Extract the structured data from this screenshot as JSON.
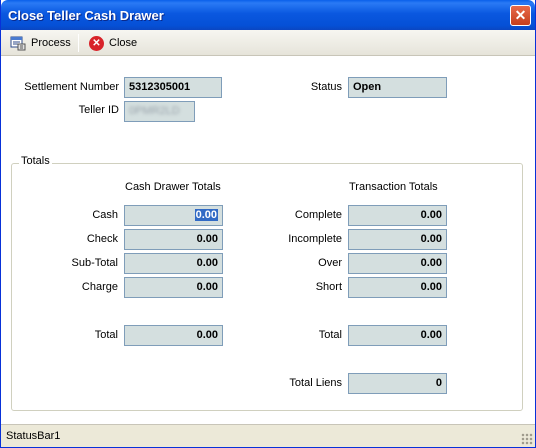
{
  "window": {
    "title": "Close Teller Cash Drawer",
    "close_glyph": "✕"
  },
  "toolbar": {
    "process_label": "Process",
    "close_label": "Close",
    "close_icon_glyph": "✕"
  },
  "header": {
    "settlement_number_label": "Settlement Number",
    "settlement_number_value": "5312305001",
    "teller_id_label": "Teller ID",
    "teller_id_value": "0PMR2LD",
    "status_label": "Status",
    "status_value": "Open"
  },
  "totals": {
    "group_title": "Totals",
    "cash_drawer_header": "Cash Drawer Totals",
    "transaction_header": "Transaction Totals",
    "cash_label": "Cash",
    "cash_value": "0.00",
    "check_label": "Check",
    "check_value": "0.00",
    "subtotal_label": "Sub-Total",
    "subtotal_value": "0.00",
    "charge_label": "Charge",
    "charge_value": "0.00",
    "drawer_total_label": "Total",
    "drawer_total_value": "0.00",
    "complete_label": "Complete",
    "complete_value": "0.00",
    "incomplete_label": "Incomplete",
    "incomplete_value": "0.00",
    "over_label": "Over",
    "over_value": "0.00",
    "short_label": "Short",
    "short_value": "0.00",
    "transaction_total_label": "Total",
    "transaction_total_value": "0.00",
    "total_liens_label": "Total Liens",
    "total_liens_value": "0"
  },
  "statusbar": {
    "text": "StatusBar1"
  },
  "colors": {
    "titlebar": "#0a58e0",
    "field_bg": "#d4dfdf",
    "selection": "#316ac5"
  },
  "icons": {
    "process": "process-icon",
    "close": "close-icon"
  }
}
